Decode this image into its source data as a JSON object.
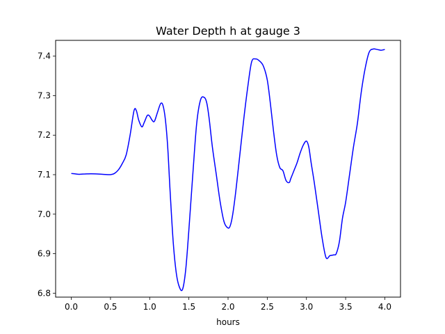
{
  "chart_data": {
    "type": "line",
    "title": "Water Depth h at gauge 3",
    "xlabel": "hours",
    "ylabel": "",
    "xlim": [
      -0.2,
      4.2
    ],
    "ylim": [
      6.79,
      7.44
    ],
    "x_ticks": [
      0.0,
      0.5,
      1.0,
      1.5,
      2.0,
      2.5,
      3.0,
      3.5,
      4.0
    ],
    "x_tick_labels": [
      "0.0",
      "0.5",
      "1.0",
      "1.5",
      "2.0",
      "2.5",
      "3.0",
      "3.5",
      "4.0"
    ],
    "y_ticks": [
      6.8,
      6.9,
      7.0,
      7.1,
      7.2,
      7.3,
      7.4
    ],
    "y_tick_labels": [
      "6.8",
      "6.9",
      "7.0",
      "7.1",
      "7.2",
      "7.3",
      "7.4"
    ],
    "grid": false,
    "legend": "none",
    "series": [
      {
        "color": "#0000ff",
        "x": [
          0.0,
          0.05,
          0.1,
          0.2,
          0.3,
          0.4,
          0.5,
          0.55,
          0.6,
          0.65,
          0.7,
          0.75,
          0.8,
          0.83,
          0.86,
          0.9,
          0.93,
          0.97,
          1.0,
          1.03,
          1.06,
          1.1,
          1.14,
          1.17,
          1.2,
          1.23,
          1.26,
          1.3,
          1.34,
          1.38,
          1.42,
          1.46,
          1.5,
          1.55,
          1.6,
          1.65,
          1.7,
          1.73,
          1.76,
          1.8,
          1.85,
          1.9,
          1.95,
          2.0,
          2.03,
          2.06,
          2.1,
          2.15,
          2.2,
          2.25,
          2.3,
          2.35,
          2.4,
          2.45,
          2.5,
          2.54,
          2.58,
          2.62,
          2.66,
          2.7,
          2.74,
          2.78,
          2.8,
          2.84,
          2.88,
          2.92,
          2.96,
          3.0,
          3.03,
          3.06,
          3.1,
          3.15,
          3.2,
          3.25,
          3.3,
          3.35,
          3.38,
          3.42,
          3.46,
          3.5,
          3.55,
          3.6,
          3.65,
          3.7,
          3.75,
          3.8,
          3.85,
          3.9,
          3.95,
          3.98,
          4.0
        ],
        "values": [
          7.103,
          7.102,
          7.101,
          7.102,
          7.102,
          7.101,
          7.1,
          7.103,
          7.112,
          7.128,
          7.15,
          7.2,
          7.262,
          7.262,
          7.238,
          7.221,
          7.232,
          7.25,
          7.248,
          7.238,
          7.235,
          7.258,
          7.28,
          7.275,
          7.24,
          7.17,
          7.06,
          6.93,
          6.85,
          6.815,
          6.81,
          6.86,
          6.96,
          7.1,
          7.23,
          7.29,
          7.295,
          7.28,
          7.24,
          7.17,
          7.1,
          7.03,
          6.98,
          6.965,
          6.972,
          7.0,
          7.06,
          7.15,
          7.24,
          7.32,
          7.385,
          7.393,
          7.388,
          7.375,
          7.34,
          7.28,
          7.21,
          7.15,
          7.118,
          7.11,
          7.085,
          7.08,
          7.09,
          7.11,
          7.13,
          7.155,
          7.175,
          7.185,
          7.17,
          7.13,
          7.08,
          7.01,
          6.94,
          6.89,
          6.895,
          6.897,
          6.9,
          6.93,
          6.99,
          7.03,
          7.1,
          7.17,
          7.23,
          7.31,
          7.37,
          7.41,
          7.418,
          7.417,
          7.415,
          7.416,
          7.417
        ]
      }
    ]
  }
}
